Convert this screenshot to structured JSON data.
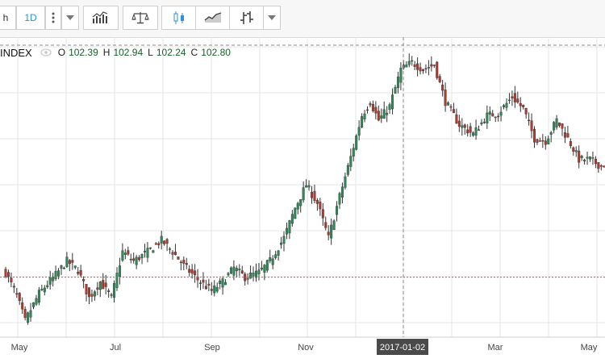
{
  "toolbar": {
    "interval_partial": "h",
    "interval_active": "1D"
  },
  "colors": {
    "up": "#2e8b57",
    "down": "#b03a2e",
    "grid": "#e6e6e6",
    "active_button": "#2f8fd8",
    "current_price_line": "#d9534f"
  },
  "legend": {
    "symbol_partial": "INDEX",
    "open_label": "O",
    "open": "102.39",
    "high_label": "H",
    "high": "102.94",
    "low_label": "L",
    "low": "102.24",
    "close_label": "C",
    "close": "102.80"
  },
  "crosshair": {
    "date_label": "2017-01-02"
  },
  "chart_data": {
    "type": "candlestick",
    "x_tick_labels": [
      "May",
      "Jul",
      "Sep",
      "Nov",
      "Mar",
      "May"
    ],
    "y_range": [
      91.0,
      104.0
    ],
    "grid": true,
    "current_price_line": 93.6,
    "crosshair_high": 103.65,
    "anchors": [
      {
        "t": 0,
        "v": 93.8
      },
      {
        "t": 4,
        "v": 92.8
      },
      {
        "t": 7,
        "v": 91.7
      },
      {
        "t": 12,
        "v": 92.9
      },
      {
        "t": 18,
        "v": 93.7
      },
      {
        "t": 22,
        "v": 94.3
      },
      {
        "t": 26,
        "v": 93.9
      },
      {
        "t": 30,
        "v": 92.7
      },
      {
        "t": 34,
        "v": 93.4
      },
      {
        "t": 38,
        "v": 92.7
      },
      {
        "t": 42,
        "v": 94.7
      },
      {
        "t": 46,
        "v": 94.3
      },
      {
        "t": 51,
        "v": 94.7
      },
      {
        "t": 56,
        "v": 95.2
      },
      {
        "t": 60,
        "v": 94.7
      },
      {
        "t": 64,
        "v": 94.1
      },
      {
        "t": 69,
        "v": 93.5
      },
      {
        "t": 74,
        "v": 93.0
      },
      {
        "t": 78,
        "v": 93.4
      },
      {
        "t": 82,
        "v": 94.0
      },
      {
        "t": 86,
        "v": 93.6
      },
      {
        "t": 91,
        "v": 93.8
      },
      {
        "t": 95,
        "v": 94.3
      },
      {
        "t": 100,
        "v": 95.3
      },
      {
        "t": 104,
        "v": 96.6
      },
      {
        "t": 108,
        "v": 97.6
      },
      {
        "t": 112,
        "v": 96.8
      },
      {
        "t": 116,
        "v": 95.3
      },
      {
        "t": 120,
        "v": 97.1
      },
      {
        "t": 124,
        "v": 98.8
      },
      {
        "t": 128,
        "v": 100.6
      },
      {
        "t": 131,
        "v": 101.2
      },
      {
        "t": 134,
        "v": 100.4
      },
      {
        "t": 138,
        "v": 101.0
      },
      {
        "t": 142,
        "v": 102.6
      },
      {
        "t": 146,
        "v": 102.9
      },
      {
        "t": 150,
        "v": 102.6
      },
      {
        "t": 154,
        "v": 102.8
      },
      {
        "t": 158,
        "v": 101.2
      },
      {
        "t": 163,
        "v": 100.2
      },
      {
        "t": 168,
        "v": 99.8
      },
      {
        "t": 173,
        "v": 100.6
      },
      {
        "t": 177,
        "v": 100.7
      },
      {
        "t": 182,
        "v": 101.4
      },
      {
        "t": 186,
        "v": 100.9
      },
      {
        "t": 190,
        "v": 99.6
      },
      {
        "t": 194,
        "v": 99.5
      },
      {
        "t": 198,
        "v": 100.4
      },
      {
        "t": 202,
        "v": 99.6
      },
      {
        "t": 206,
        "v": 98.7
      },
      {
        "t": 210,
        "v": 98.7
      },
      {
        "t": 214,
        "v": 98.4
      },
      {
        "t": 218,
        "v": 98.7
      }
    ]
  }
}
